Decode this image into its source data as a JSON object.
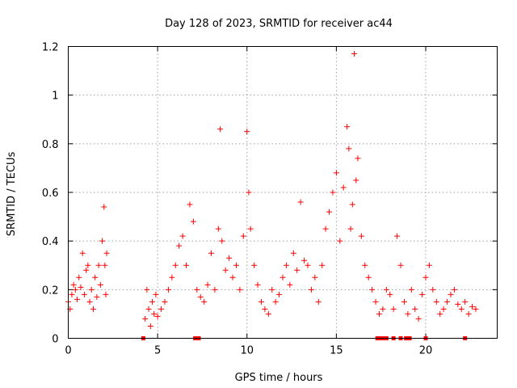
{
  "chart_data": {
    "type": "scatter",
    "title": "Day 128 of 2023, SRMTID for receiver ac44",
    "xlabel": "GPS time / hours",
    "ylabel": "SRMTID / TECUs",
    "xlim": [
      0,
      24
    ],
    "ylim": [
      0,
      1.2
    ],
    "xticks": [
      0,
      5,
      10,
      15,
      20
    ],
    "xtick_labels": [
      "0",
      "5",
      "10",
      "15",
      "20"
    ],
    "yticks": [
      0,
      0.2,
      0.4,
      0.6,
      0.8,
      1.0,
      1.2
    ],
    "ytick_labels": [
      "0",
      "0.2",
      "0.4",
      "0.6",
      "0.8",
      "1",
      "1.2"
    ],
    "grid": true,
    "marker": "+",
    "color": "#ff0000",
    "series": [
      {
        "name": "SRMTID",
        "x": [
          0.0,
          0.1,
          0.2,
          0.3,
          0.4,
          0.5,
          0.6,
          0.7,
          0.8,
          0.9,
          1.0,
          1.1,
          1.2,
          1.3,
          1.4,
          1.5,
          1.6,
          1.7,
          1.8,
          1.9,
          2.0,
          2.05,
          2.1,
          2.15,
          4.3,
          4.4,
          4.5,
          4.6,
          4.7,
          4.8,
          4.9,
          5.0,
          5.2,
          5.4,
          5.6,
          5.8,
          6.0,
          6.2,
          6.4,
          6.6,
          6.8,
          7.0,
          7.2,
          7.4,
          7.6,
          7.8,
          8.0,
          8.2,
          8.4,
          8.5,
          8.6,
          8.8,
          9.0,
          9.2,
          9.4,
          9.6,
          9.8,
          10.0,
          10.1,
          10.2,
          10.4,
          10.6,
          10.8,
          11.0,
          11.2,
          11.4,
          11.6,
          11.8,
          12.0,
          12.2,
          12.4,
          12.6,
          12.8,
          13.0,
          13.2,
          13.4,
          13.6,
          13.8,
          14.0,
          14.2,
          14.4,
          14.6,
          14.8,
          15.0,
          15.2,
          15.4,
          15.6,
          15.7,
          15.8,
          15.9,
          16.0,
          16.1,
          16.2,
          16.4,
          16.6,
          16.8,
          17.0,
          17.2,
          17.4,
          17.6,
          17.8,
          18.0,
          18.2,
          18.4,
          18.6,
          18.8,
          19.0,
          19.2,
          19.4,
          19.6,
          19.8,
          20.0,
          20.2,
          20.4,
          20.6,
          20.8,
          21.0,
          21.2,
          21.4,
          21.6,
          21.8,
          22.0,
          22.2,
          22.4,
          22.6,
          22.8
        ],
        "y": [
          0.15,
          0.12,
          0.18,
          0.22,
          0.2,
          0.16,
          0.25,
          0.21,
          0.35,
          0.18,
          0.28,
          0.3,
          0.15,
          0.2,
          0.12,
          0.25,
          0.17,
          0.3,
          0.22,
          0.4,
          0.54,
          0.3,
          0.18,
          0.35,
          0.08,
          0.2,
          0.12,
          0.05,
          0.15,
          0.1,
          0.18,
          0.09,
          0.12,
          0.15,
          0.2,
          0.25,
          0.3,
          0.38,
          0.42,
          0.3,
          0.55,
          0.48,
          0.2,
          0.17,
          0.15,
          0.22,
          0.35,
          0.2,
          0.45,
          0.86,
          0.4,
          0.28,
          0.33,
          0.25,
          0.3,
          0.2,
          0.42,
          0.85,
          0.6,
          0.45,
          0.3,
          0.22,
          0.15,
          0.12,
          0.1,
          0.2,
          0.15,
          0.18,
          0.25,
          0.3,
          0.22,
          0.35,
          0.28,
          0.56,
          0.32,
          0.3,
          0.2,
          0.25,
          0.15,
          0.3,
          0.45,
          0.52,
          0.6,
          0.68,
          0.4,
          0.62,
          0.87,
          0.78,
          0.45,
          0.55,
          1.17,
          0.65,
          0.74,
          0.42,
          0.3,
          0.25,
          0.2,
          0.15,
          0.1,
          0.12,
          0.2,
          0.18,
          0.12,
          0.42,
          0.3,
          0.15,
          0.1,
          0.2,
          0.12,
          0.08,
          0.18,
          0.25,
          0.3,
          0.2,
          0.15,
          0.1,
          0.12,
          0.15,
          0.18,
          0.2,
          0.14,
          0.12,
          0.15,
          0.1,
          0.13,
          0.12
        ]
      }
    ],
    "zero_points_x": [
      4.2,
      7.1,
      7.3,
      17.3,
      17.5,
      17.7,
      17.8,
      18.2,
      18.6,
      18.9,
      19.1,
      20.0,
      22.2
    ]
  }
}
